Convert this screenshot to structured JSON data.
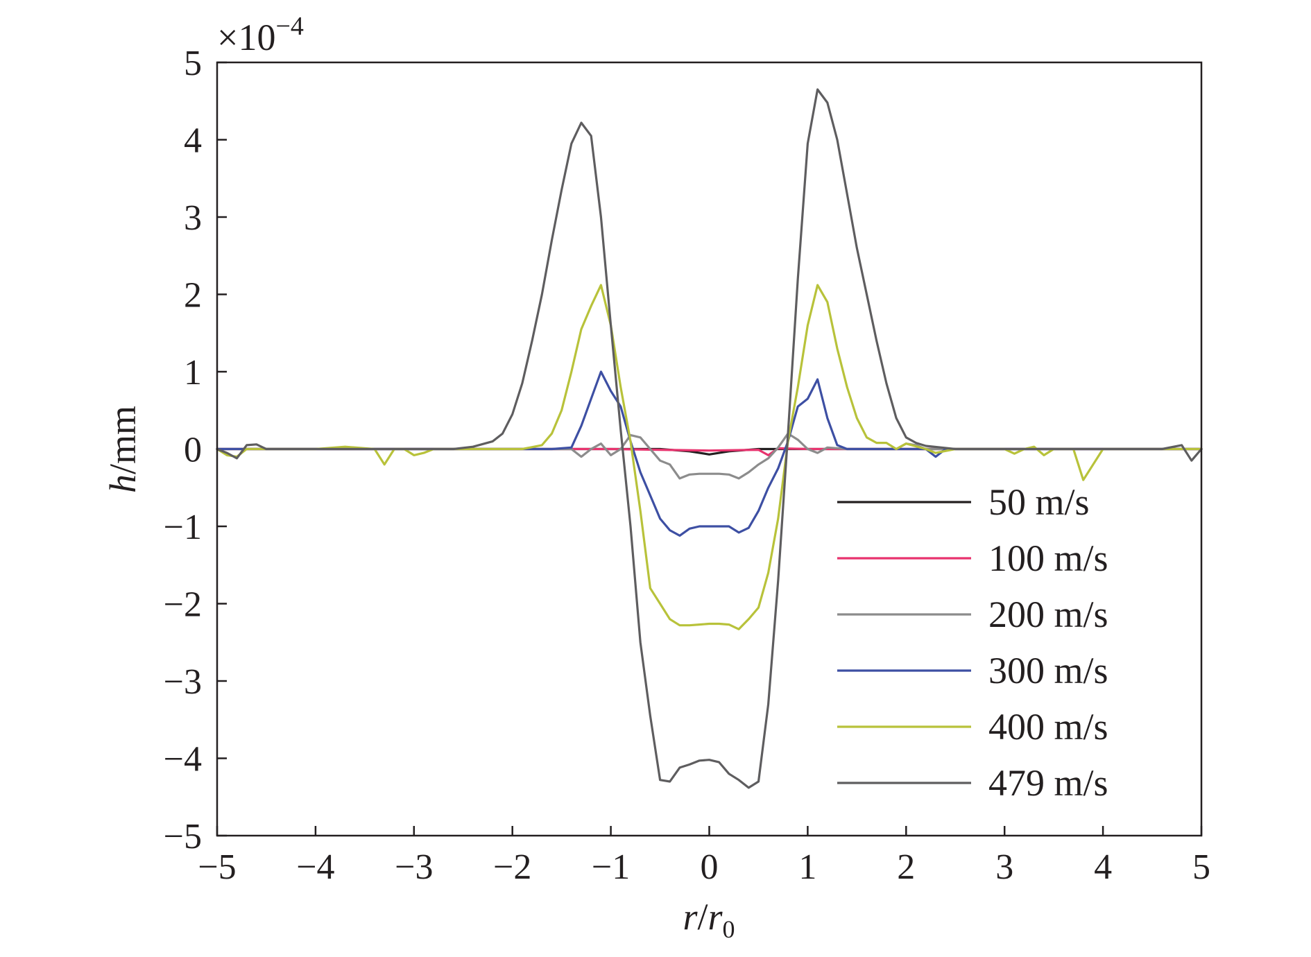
{
  "chart_data": {
    "type": "line",
    "title": "",
    "xlabel_var": "r",
    "xlabel_sep": "/",
    "xlabel_den": "r",
    "xlabel_sub": "0",
    "ylabel_var": "h",
    "ylabel_unit": "/mm",
    "y_multiplier": "×10",
    "y_multiplier_exp": "−4",
    "xlim": [
      -5,
      5
    ],
    "ylim": [
      -5,
      5
    ],
    "xticks": [
      -5,
      -4,
      -3,
      -2,
      -1,
      0,
      1,
      2,
      3,
      4,
      5
    ],
    "yticks": [
      -5,
      -4,
      -3,
      -2,
      -1,
      0,
      1,
      2,
      3,
      4,
      5
    ],
    "xtick_labels": [
      "−5",
      "−4",
      "−3",
      "−2",
      "−1",
      "0",
      "1",
      "2",
      "3",
      "4",
      "5"
    ],
    "ytick_labels": [
      "−5",
      "−4",
      "−3",
      "−2",
      "−1",
      "0",
      "1",
      "2",
      "3",
      "4",
      "5"
    ],
    "legend_position": "lower-right",
    "series": [
      {
        "name": "50 m/s",
        "color": "#231f20",
        "points": [
          [
            -5,
            0
          ],
          [
            -2,
            0
          ],
          [
            -1,
            0
          ],
          [
            -0.5,
            0
          ],
          [
            -0.2,
            -0.03
          ],
          [
            0,
            -0.07
          ],
          [
            0.2,
            -0.03
          ],
          [
            0.5,
            0
          ],
          [
            1,
            0
          ],
          [
            2,
            0
          ],
          [
            5,
            0
          ]
        ]
      },
      {
        "name": "100 m/s",
        "color": "#e8336e",
        "points": [
          [
            -5,
            0
          ],
          [
            -2,
            0
          ],
          [
            -1,
            0
          ],
          [
            -0.5,
            -0.01
          ],
          [
            0,
            -0.02
          ],
          [
            0.5,
            -0.01
          ],
          [
            0.6,
            -0.08
          ],
          [
            0.7,
            0.01
          ],
          [
            1,
            0
          ],
          [
            2,
            0
          ],
          [
            5,
            0
          ]
        ]
      },
      {
        "name": "200 m/s",
        "color": "#8c8c8c",
        "points": [
          [
            -5,
            0
          ],
          [
            -1.4,
            0
          ],
          [
            -1.3,
            -0.1
          ],
          [
            -1.2,
            0
          ],
          [
            -1.1,
            0.07
          ],
          [
            -1.0,
            -0.08
          ],
          [
            -0.9,
            0
          ],
          [
            -0.8,
            0.18
          ],
          [
            -0.7,
            0.15
          ],
          [
            -0.6,
            0
          ],
          [
            -0.5,
            -0.15
          ],
          [
            -0.4,
            -0.2
          ],
          [
            -0.3,
            -0.38
          ],
          [
            -0.2,
            -0.33
          ],
          [
            -0.1,
            -0.32
          ],
          [
            0,
            -0.32
          ],
          [
            0.1,
            -0.32
          ],
          [
            0.2,
            -0.33
          ],
          [
            0.3,
            -0.38
          ],
          [
            0.4,
            -0.3
          ],
          [
            0.5,
            -0.2
          ],
          [
            0.6,
            -0.12
          ],
          [
            0.7,
            0.02
          ],
          [
            0.8,
            0.2
          ],
          [
            0.9,
            0.12
          ],
          [
            1.0,
            0
          ],
          [
            1.1,
            -0.05
          ],
          [
            1.2,
            0.02
          ],
          [
            1.4,
            0
          ],
          [
            1.9,
            0
          ],
          [
            2.0,
            0.07
          ],
          [
            2.1,
            0.05
          ],
          [
            2.2,
            0
          ],
          [
            5,
            0
          ]
        ]
      },
      {
        "name": "300 m/s",
        "color": "#3d4fa3",
        "points": [
          [
            -5,
            0
          ],
          [
            -1.6,
            0
          ],
          [
            -1.4,
            0.02
          ],
          [
            -1.3,
            0.3
          ],
          [
            -1.2,
            0.65
          ],
          [
            -1.1,
            1.0
          ],
          [
            -1.0,
            0.75
          ],
          [
            -0.9,
            0.55
          ],
          [
            -0.8,
            0.1
          ],
          [
            -0.7,
            -0.3
          ],
          [
            -0.6,
            -0.6
          ],
          [
            -0.5,
            -0.9
          ],
          [
            -0.4,
            -1.05
          ],
          [
            -0.3,
            -1.12
          ],
          [
            -0.2,
            -1.03
          ],
          [
            -0.1,
            -1.0
          ],
          [
            0,
            -1.0
          ],
          [
            0.1,
            -1.0
          ],
          [
            0.2,
            -1.0
          ],
          [
            0.3,
            -1.08
          ],
          [
            0.4,
            -1.02
          ],
          [
            0.5,
            -0.8
          ],
          [
            0.6,
            -0.5
          ],
          [
            0.7,
            -0.25
          ],
          [
            0.8,
            0.1
          ],
          [
            0.9,
            0.55
          ],
          [
            1.0,
            0.65
          ],
          [
            1.1,
            0.9
          ],
          [
            1.2,
            0.4
          ],
          [
            1.3,
            0.05
          ],
          [
            1.4,
            0
          ],
          [
            2.0,
            0
          ],
          [
            2.2,
            0
          ],
          [
            2.3,
            -0.1
          ],
          [
            2.4,
            0
          ],
          [
            5,
            0
          ]
        ]
      },
      {
        "name": "400 m/s",
        "color": "#b8c23a",
        "points": [
          [
            -5,
            0
          ],
          [
            -4.9,
            -0.08
          ],
          [
            -4.8,
            -0.1
          ],
          [
            -4.7,
            0
          ],
          [
            -4,
            0
          ],
          [
            -3.7,
            0.03
          ],
          [
            -3.4,
            0
          ],
          [
            -3.3,
            -0.2
          ],
          [
            -3.2,
            0
          ],
          [
            -3.1,
            0
          ],
          [
            -3.0,
            -0.08
          ],
          [
            -2.9,
            -0.05
          ],
          [
            -2.8,
            0
          ],
          [
            -1.9,
            0
          ],
          [
            -1.7,
            0.05
          ],
          [
            -1.6,
            0.2
          ],
          [
            -1.5,
            0.5
          ],
          [
            -1.4,
            1.0
          ],
          [
            -1.3,
            1.55
          ],
          [
            -1.2,
            1.85
          ],
          [
            -1.1,
            2.12
          ],
          [
            -1.0,
            1.6
          ],
          [
            -0.9,
            0.8
          ],
          [
            -0.8,
            0.1
          ],
          [
            -0.7,
            -0.8
          ],
          [
            -0.6,
            -1.8
          ],
          [
            -0.5,
            -2.0
          ],
          [
            -0.4,
            -2.2
          ],
          [
            -0.3,
            -2.28
          ],
          [
            -0.2,
            -2.28
          ],
          [
            -0.1,
            -2.27
          ],
          [
            0,
            -2.26
          ],
          [
            0.1,
            -2.26
          ],
          [
            0.2,
            -2.27
          ],
          [
            0.3,
            -2.33
          ],
          [
            0.4,
            -2.2
          ],
          [
            0.5,
            -2.05
          ],
          [
            0.6,
            -1.6
          ],
          [
            0.7,
            -0.9
          ],
          [
            0.8,
            0.1
          ],
          [
            0.9,
            0.8
          ],
          [
            1.0,
            1.6
          ],
          [
            1.1,
            2.12
          ],
          [
            1.2,
            1.9
          ],
          [
            1.3,
            1.3
          ],
          [
            1.4,
            0.8
          ],
          [
            1.5,
            0.4
          ],
          [
            1.6,
            0.15
          ],
          [
            1.7,
            0.08
          ],
          [
            1.8,
            0.08
          ],
          [
            1.9,
            0
          ],
          [
            2.0,
            0.07
          ],
          [
            2.2,
            0
          ],
          [
            2.3,
            -0.05
          ],
          [
            2.5,
            0
          ],
          [
            3.0,
            0
          ],
          [
            3.1,
            -0.06
          ],
          [
            3.2,
            0
          ],
          [
            3.3,
            0.03
          ],
          [
            3.4,
            -0.08
          ],
          [
            3.5,
            0
          ],
          [
            3.7,
            0
          ],
          [
            3.8,
            -0.4
          ],
          [
            3.9,
            -0.2
          ],
          [
            4.0,
            0
          ],
          [
            5,
            0
          ]
        ]
      },
      {
        "name": "479 m/s",
        "color": "#5e5d5f",
        "points": [
          [
            -5,
            0
          ],
          [
            -4.9,
            -0.05
          ],
          [
            -4.8,
            -0.12
          ],
          [
            -4.7,
            0.05
          ],
          [
            -4.6,
            0.06
          ],
          [
            -4.5,
            0
          ],
          [
            -3,
            0
          ],
          [
            -2.6,
            0
          ],
          [
            -2.4,
            0.03
          ],
          [
            -2.2,
            0.1
          ],
          [
            -2.1,
            0.2
          ],
          [
            -2.0,
            0.45
          ],
          [
            -1.9,
            0.85
          ],
          [
            -1.8,
            1.4
          ],
          [
            -1.7,
            2.0
          ],
          [
            -1.6,
            2.7
          ],
          [
            -1.5,
            3.35
          ],
          [
            -1.4,
            3.95
          ],
          [
            -1.3,
            4.22
          ],
          [
            -1.2,
            4.05
          ],
          [
            -1.1,
            3.0
          ],
          [
            -1.0,
            1.6
          ],
          [
            -0.9,
            0.25
          ],
          [
            -0.8,
            -1.0
          ],
          [
            -0.7,
            -2.5
          ],
          [
            -0.6,
            -3.45
          ],
          [
            -0.5,
            -4.28
          ],
          [
            -0.4,
            -4.3
          ],
          [
            -0.3,
            -4.12
          ],
          [
            -0.2,
            -4.08
          ],
          [
            -0.1,
            -4.03
          ],
          [
            0,
            -4.02
          ],
          [
            0.1,
            -4.05
          ],
          [
            0.2,
            -4.2
          ],
          [
            0.3,
            -4.28
          ],
          [
            0.4,
            -4.38
          ],
          [
            0.5,
            -4.3
          ],
          [
            0.6,
            -3.3
          ],
          [
            0.7,
            -1.7
          ],
          [
            0.8,
            0.2
          ],
          [
            0.9,
            2.2
          ],
          [
            1.0,
            3.95
          ],
          [
            1.1,
            4.65
          ],
          [
            1.2,
            4.48
          ],
          [
            1.3,
            4.0
          ],
          [
            1.4,
            3.3
          ],
          [
            1.5,
            2.6
          ],
          [
            1.6,
            2.0
          ],
          [
            1.7,
            1.4
          ],
          [
            1.8,
            0.85
          ],
          [
            1.9,
            0.4
          ],
          [
            2.0,
            0.15
          ],
          [
            2.1,
            0.08
          ],
          [
            2.2,
            0.04
          ],
          [
            2.5,
            0
          ],
          [
            3.0,
            0
          ],
          [
            4.6,
            0
          ],
          [
            4.8,
            0.05
          ],
          [
            4.9,
            -0.15
          ],
          [
            5,
            0
          ]
        ]
      }
    ]
  }
}
